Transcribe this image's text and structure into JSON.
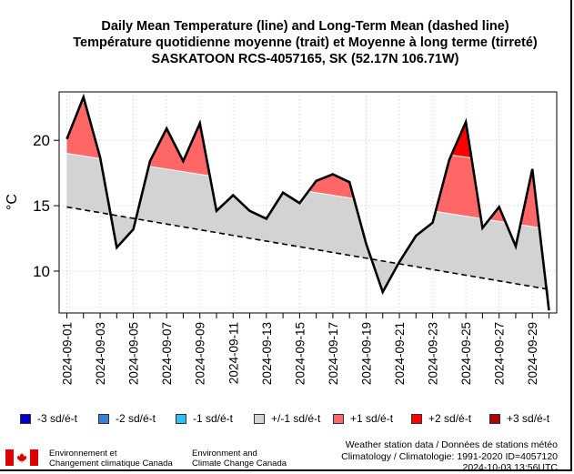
{
  "titles": {
    "line1": "Daily Mean Temperature (line) and Long-Term Mean (dashed line)",
    "line2": "Température quotidienne moyenne (trait) et Moyenne à long terme (tirreté)",
    "line3": "SASKATOON RCS-4057165, SK (52.17N 106.71W)"
  },
  "legend": [
    {
      "label": "-3 sd/é-t",
      "color": "#0000cc"
    },
    {
      "label": "-2 sd/é-t",
      "color": "#3a7fd6"
    },
    {
      "label": "-1 sd/é-t",
      "color": "#2ec0f0"
    },
    {
      "label": "+/-1 sd/é-t",
      "color": "#d3d3d3"
    },
    {
      "label": "+1 sd/é-t",
      "color": "#ff6666"
    },
    {
      "label": "+2 sd/é-t",
      "color": "#ff0000"
    },
    {
      "label": "+3 sd/é-t",
      "color": "#b00000"
    }
  ],
  "footer": {
    "org_fr_line1": "Environnement et",
    "org_fr_line2": "Changement climatique Canada",
    "org_en_line1": "Environment and",
    "org_en_line2": "Climate Change Canada",
    "info_line1": "Weather station data / Données de stations météo",
    "info_line2": "Climatology / Climatologie: 1991-2020 ID=4057120",
    "info_line3": "2024-10-03 13:56UTC"
  },
  "chart_data": {
    "type": "line",
    "title": "Daily Mean Temperature (line) and Long-Term Mean (dashed line)",
    "xlabel": "",
    "ylabel": "°C",
    "ylim": [
      6.8,
      23.7
    ],
    "yticks": [
      10,
      15,
      20
    ],
    "grid": true,
    "x": [
      "2024-09-01",
      "2024-09-02",
      "2024-09-03",
      "2024-09-04",
      "2024-09-05",
      "2024-09-06",
      "2024-09-07",
      "2024-09-08",
      "2024-09-09",
      "2024-09-10",
      "2024-09-11",
      "2024-09-12",
      "2024-09-13",
      "2024-09-14",
      "2024-09-15",
      "2024-09-16",
      "2024-09-17",
      "2024-09-18",
      "2024-09-19",
      "2024-09-20",
      "2024-09-21",
      "2024-09-22",
      "2024-09-23",
      "2024-09-24",
      "2024-09-25",
      "2024-09-26",
      "2024-09-27",
      "2024-09-28",
      "2024-09-29",
      "2024-09-30"
    ],
    "xtick_labels": [
      "2024-09-01",
      "2024-09-03",
      "2024-09-05",
      "2024-09-07",
      "2024-09-09",
      "2024-09-11",
      "2024-09-13",
      "2024-09-15",
      "2024-09-17",
      "2024-09-19",
      "2024-09-21",
      "2024-09-23",
      "2024-09-25",
      "2024-09-27",
      "2024-09-29"
    ],
    "series": [
      {
        "name": "Daily Mean Temperature",
        "style": "solid",
        "values": [
          20.1,
          23.3,
          18.7,
          11.8,
          13.2,
          18.4,
          20.9,
          18.4,
          21.3,
          14.6,
          15.8,
          14.6,
          14.0,
          16.0,
          15.2,
          16.9,
          17.4,
          16.8,
          12.1,
          8.4,
          10.7,
          12.7,
          13.7,
          18.5,
          21.4,
          13.3,
          14.9,
          11.9,
          17.8,
          7.0
        ]
      },
      {
        "name": "Long-Term Mean",
        "style": "dashed",
        "start": 14.9,
        "end": 8.6
      },
      {
        "name": "+1 sd",
        "style": "band-boundary",
        "start": 19.0,
        "end": 13.2
      },
      {
        "name": "+2 sd",
        "style": "band-boundary",
        "start": 23.1,
        "end": 17.8
      }
    ],
    "legend_position": "bottom"
  }
}
